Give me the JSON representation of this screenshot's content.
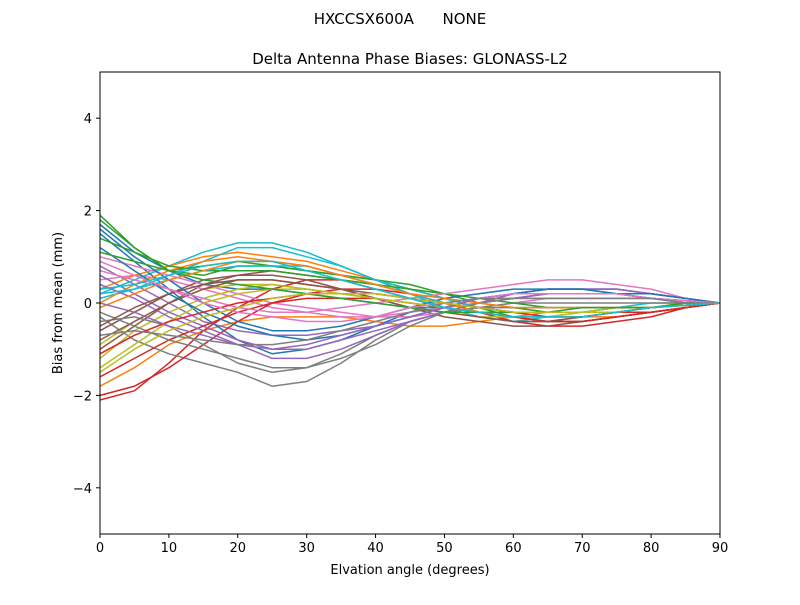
{
  "figure": {
    "suptitle": "HXCCSX600A      NONE"
  },
  "chart_data": {
    "type": "line",
    "title": "Delta Antenna Phase Biases: GLONASS-L2",
    "xlabel": "Elvation angle (degrees)",
    "ylabel": "Bias from mean (mm)",
    "xlim": [
      0,
      90
    ],
    "ylim": [
      -5,
      5
    ],
    "xticks": [
      0,
      10,
      20,
      30,
      40,
      50,
      60,
      70,
      80,
      90
    ],
    "yticks": [
      -4,
      -2,
      0,
      2,
      4
    ],
    "grid": false,
    "legend": "none",
    "x": [
      0,
      5,
      10,
      15,
      20,
      25,
      30,
      35,
      40,
      45,
      50,
      55,
      60,
      65,
      70,
      75,
      80,
      85,
      90
    ],
    "colors": [
      "#1f77b4",
      "#ff7f0e",
      "#2ca02c",
      "#d62728",
      "#9467bd",
      "#8c564b",
      "#e377c2",
      "#7f7f7f",
      "#bcbd22",
      "#17becf"
    ],
    "series": [
      {
        "values": [
          1.7,
          1.1,
          0.7,
          0.4,
          0.3,
          0.3,
          0.2,
          0.1,
          0.0,
          -0.1,
          -0.1,
          0.0,
          0.1,
          0.2,
          0.2,
          0.2,
          0.1,
          0.05,
          0
        ]
      },
      {
        "values": [
          -1.8,
          -1.4,
          -0.9,
          -0.6,
          -0.4,
          -0.3,
          -0.3,
          -0.3,
          -0.4,
          -0.5,
          -0.5,
          -0.4,
          -0.3,
          -0.2,
          -0.2,
          -0.2,
          -0.2,
          -0.1,
          0
        ]
      },
      {
        "values": [
          1.9,
          1.2,
          0.7,
          0.8,
          0.9,
          0.8,
          0.7,
          0.6,
          0.5,
          0.3,
          0.1,
          -0.1,
          -0.3,
          -0.4,
          -0.4,
          -0.3,
          -0.2,
          -0.1,
          0
        ]
      },
      {
        "values": [
          -2.1,
          -1.9,
          -1.3,
          -0.6,
          -0.1,
          0.3,
          0.5,
          0.5,
          0.4,
          0.2,
          0.0,
          -0.2,
          -0.4,
          -0.5,
          -0.5,
          -0.4,
          -0.3,
          -0.1,
          0
        ]
      },
      {
        "values": [
          0.8,
          0.4,
          0.0,
          -0.4,
          -0.6,
          -0.7,
          -0.7,
          -0.6,
          -0.5,
          -0.3,
          -0.1,
          0.1,
          0.2,
          0.3,
          0.3,
          0.3,
          0.2,
          0.1,
          0
        ]
      },
      {
        "values": [
          -1.0,
          -0.5,
          0.0,
          0.4,
          0.6,
          0.7,
          0.6,
          0.5,
          0.3,
          0.1,
          -0.1,
          -0.3,
          -0.4,
          -0.4,
          -0.3,
          -0.2,
          -0.1,
          -0.05,
          0
        ]
      },
      {
        "values": [
          0.5,
          0.6,
          0.5,
          0.3,
          0.1,
          -0.1,
          -0.2,
          -0.3,
          -0.3,
          -0.2,
          -0.1,
          0.0,
          0.1,
          0.2,
          0.2,
          0.2,
          0.1,
          0.05,
          0
        ]
      },
      {
        "values": [
          -0.3,
          -0.8,
          -1.1,
          -1.3,
          -1.5,
          -1.8,
          -1.7,
          -1.3,
          -0.8,
          -0.4,
          -0.2,
          -0.1,
          -0.1,
          -0.1,
          -0.1,
          -0.1,
          -0.1,
          -0.05,
          0
        ]
      },
      {
        "values": [
          -1.2,
          -0.6,
          -0.2,
          0.1,
          0.3,
          0.4,
          0.3,
          0.2,
          0.1,
          0.0,
          -0.1,
          -0.2,
          -0.2,
          -0.2,
          -0.2,
          -0.1,
          -0.1,
          -0.05,
          0
        ]
      },
      {
        "values": [
          0.2,
          0.5,
          0.8,
          1.1,
          1.3,
          1.3,
          1.1,
          0.8,
          0.5,
          0.2,
          -0.1,
          -0.3,
          -0.4,
          -0.3,
          -0.2,
          -0.1,
          0.0,
          0.0,
          0
        ]
      },
      {
        "values": [
          1.5,
          0.9,
          0.3,
          -0.3,
          -0.8,
          -1.1,
          -1.0,
          -0.8,
          -0.5,
          -0.2,
          0.0,
          0.1,
          0.2,
          0.3,
          0.3,
          0.3,
          0.2,
          0.1,
          0
        ]
      },
      {
        "values": [
          0.3,
          0.6,
          0.8,
          1.0,
          1.1,
          1.0,
          0.9,
          0.7,
          0.5,
          0.3,
          0.1,
          -0.1,
          -0.2,
          -0.3,
          -0.3,
          -0.3,
          -0.2,
          -0.1,
          0
        ]
      },
      {
        "values": [
          1.8,
          1.2,
          0.7,
          0.6,
          0.8,
          0.8,
          0.7,
          0.6,
          0.5,
          0.4,
          0.2,
          0.0,
          -0.1,
          -0.2,
          -0.2,
          -0.2,
          -0.1,
          -0.05,
          0
        ]
      },
      {
        "values": [
          -2.0,
          -1.8,
          -1.4,
          -0.9,
          -0.4,
          0.0,
          0.2,
          0.3,
          0.3,
          0.2,
          0.0,
          -0.2,
          -0.3,
          -0.4,
          -0.4,
          -0.3,
          -0.2,
          -0.1,
          0
        ]
      },
      {
        "values": [
          0.6,
          0.2,
          -0.2,
          -0.5,
          -0.8,
          -1.0,
          -1.0,
          -0.8,
          -0.6,
          -0.4,
          -0.2,
          0.0,
          0.1,
          0.2,
          0.2,
          0.2,
          0.1,
          0.05,
          0
        ]
      },
      {
        "values": [
          -0.6,
          -0.2,
          0.2,
          0.5,
          0.6,
          0.6,
          0.5,
          0.3,
          0.1,
          -0.1,
          -0.3,
          -0.4,
          -0.5,
          -0.5,
          -0.4,
          -0.3,
          -0.2,
          -0.1,
          0
        ]
      },
      {
        "values": [
          1.0,
          0.8,
          0.6,
          0.4,
          0.2,
          0.0,
          -0.1,
          -0.2,
          -0.3,
          -0.3,
          -0.2,
          -0.1,
          0.0,
          0.1,
          0.1,
          0.1,
          0.1,
          0.05,
          0
        ]
      },
      {
        "values": [
          -0.4,
          -0.3,
          -0.5,
          -0.9,
          -1.3,
          -1.5,
          -1.4,
          -1.1,
          -0.7,
          -0.4,
          -0.2,
          -0.1,
          0.0,
          0.0,
          0.0,
          0.0,
          0.0,
          0.0,
          0
        ]
      },
      {
        "values": [
          -0.9,
          -0.4,
          0.0,
          0.3,
          0.4,
          0.4,
          0.3,
          0.2,
          0.1,
          -0.1,
          -0.2,
          -0.3,
          -0.3,
          -0.3,
          -0.2,
          -0.2,
          -0.1,
          -0.05,
          0
        ]
      },
      {
        "values": [
          0.1,
          0.3,
          0.6,
          0.9,
          1.2,
          1.2,
          1.0,
          0.8,
          0.5,
          0.3,
          0.1,
          -0.1,
          -0.2,
          -0.2,
          -0.2,
          -0.1,
          -0.1,
          -0.05,
          0
        ]
      },
      {
        "values": [
          1.6,
          1.0,
          0.5,
          0.0,
          -0.4,
          -0.6,
          -0.6,
          -0.5,
          -0.3,
          -0.1,
          0.1,
          0.2,
          0.3,
          0.3,
          0.3,
          0.2,
          0.2,
          0.1,
          0
        ]
      },
      {
        "values": [
          0.0,
          0.4,
          0.7,
          0.9,
          1.0,
          0.9,
          0.8,
          0.6,
          0.4,
          0.2,
          0.0,
          -0.2,
          -0.3,
          -0.3,
          -0.3,
          -0.2,
          -0.1,
          -0.05,
          0
        ]
      },
      {
        "values": [
          1.4,
          1.1,
          0.8,
          0.7,
          0.7,
          0.7,
          0.6,
          0.5,
          0.4,
          0.3,
          0.2,
          0.1,
          0.0,
          -0.1,
          -0.1,
          -0.1,
          -0.1,
          0.0,
          0
        ]
      },
      {
        "values": [
          -1.6,
          -1.2,
          -0.8,
          -0.5,
          -0.2,
          0.0,
          0.1,
          0.1,
          0.1,
          0.0,
          -0.1,
          -0.2,
          -0.3,
          -0.4,
          -0.4,
          -0.3,
          -0.2,
          -0.1,
          0
        ]
      },
      {
        "values": [
          0.4,
          0.1,
          -0.3,
          -0.6,
          -0.9,
          -1.2,
          -1.2,
          -1.0,
          -0.7,
          -0.4,
          -0.2,
          0.0,
          0.2,
          0.3,
          0.3,
          0.3,
          0.2,
          0.1,
          0
        ]
      },
      {
        "values": [
          -0.8,
          -0.4,
          0.0,
          0.3,
          0.5,
          0.5,
          0.4,
          0.3,
          0.1,
          -0.1,
          -0.2,
          -0.3,
          -0.4,
          -0.4,
          -0.3,
          -0.2,
          -0.1,
          -0.05,
          0
        ]
      },
      {
        "values": [
          0.7,
          0.5,
          0.3,
          0.1,
          -0.1,
          -0.2,
          -0.2,
          -0.1,
          0.0,
          0.1,
          0.2,
          0.3,
          0.4,
          0.5,
          0.5,
          0.4,
          0.3,
          0.1,
          0
        ]
      },
      {
        "values": [
          -0.2,
          -0.5,
          -0.8,
          -1.0,
          -1.2,
          -1.4,
          -1.4,
          -1.2,
          -0.9,
          -0.5,
          -0.2,
          0.0,
          0.1,
          0.1,
          0.1,
          0.1,
          0.1,
          0.0,
          0
        ]
      },
      {
        "values": [
          -1.4,
          -0.9,
          -0.4,
          0.0,
          0.2,
          0.3,
          0.3,
          0.2,
          0.1,
          0.0,
          -0.1,
          -0.2,
          -0.2,
          -0.2,
          -0.2,
          -0.1,
          -0.1,
          -0.05,
          0
        ]
      },
      {
        "values": [
          0.2,
          0.3,
          0.5,
          0.7,
          0.8,
          0.8,
          0.8,
          0.6,
          0.4,
          0.2,
          0.0,
          -0.1,
          -0.2,
          -0.2,
          -0.2,
          -0.2,
          -0.1,
          -0.05,
          0
        ]
      },
      {
        "values": [
          1.2,
          0.7,
          0.2,
          -0.2,
          -0.5,
          -0.7,
          -0.8,
          -0.7,
          -0.5,
          -0.3,
          -0.1,
          0.1,
          0.2,
          0.3,
          0.3,
          0.2,
          0.2,
          0.1,
          0
        ]
      },
      {
        "values": [
          -0.1,
          0.2,
          0.5,
          0.7,
          0.9,
          0.9,
          0.8,
          0.6,
          0.4,
          0.2,
          0.1,
          0.0,
          -0.1,
          -0.1,
          -0.1,
          -0.1,
          -0.1,
          0.0,
          0
        ]
      },
      {
        "values": [
          1.1,
          0.9,
          0.7,
          0.5,
          0.4,
          0.3,
          0.2,
          0.1,
          0.0,
          -0.1,
          -0.2,
          -0.2,
          -0.2,
          -0.2,
          -0.1,
          -0.1,
          -0.1,
          0.0,
          0
        ]
      },
      {
        "values": [
          -1.1,
          -0.7,
          -0.4,
          -0.2,
          0.0,
          0.1,
          0.2,
          0.2,
          0.2,
          0.1,
          0.0,
          -0.1,
          -0.2,
          -0.3,
          -0.3,
          -0.2,
          -0.2,
          -0.1,
          0
        ]
      },
      {
        "values": [
          0.0,
          -0.2,
          -0.5,
          -0.7,
          -0.9,
          -1.0,
          -0.9,
          -0.7,
          -0.5,
          -0.3,
          -0.1,
          0.1,
          0.2,
          0.2,
          0.2,
          0.2,
          0.1,
          0.05,
          0
        ]
      },
      {
        "values": [
          -0.5,
          -0.1,
          0.2,
          0.4,
          0.5,
          0.5,
          0.4,
          0.3,
          0.2,
          0.1,
          0.0,
          -0.1,
          -0.2,
          -0.2,
          -0.2,
          -0.2,
          -0.1,
          -0.05,
          0
        ]
      },
      {
        "values": [
          0.9,
          0.6,
          0.3,
          0.0,
          -0.2,
          -0.3,
          -0.4,
          -0.4,
          -0.3,
          -0.1,
          0.0,
          0.1,
          0.2,
          0.2,
          0.2,
          0.2,
          0.1,
          0.05,
          0
        ]
      },
      {
        "values": [
          -0.7,
          -0.6,
          -0.7,
          -0.8,
          -0.9,
          -0.9,
          -0.8,
          -0.6,
          -0.4,
          -0.2,
          0.0,
          0.1,
          0.1,
          0.1,
          0.1,
          0.1,
          0.1,
          0.0,
          0
        ]
      },
      {
        "values": [
          -1.5,
          -1.0,
          -0.6,
          -0.3,
          -0.1,
          0.1,
          0.2,
          0.2,
          0.2,
          0.1,
          0.0,
          -0.1,
          -0.2,
          -0.2,
          -0.2,
          -0.2,
          -0.1,
          -0.05,
          0
        ]
      },
      {
        "values": [
          0.3,
          0.4,
          0.6,
          0.8,
          0.9,
          0.9,
          0.7,
          0.5,
          0.3,
          0.1,
          -0.1,
          -0.2,
          -0.3,
          -0.3,
          -0.3,
          -0.2,
          -0.1,
          -0.05,
          0
        ]
      }
    ]
  }
}
